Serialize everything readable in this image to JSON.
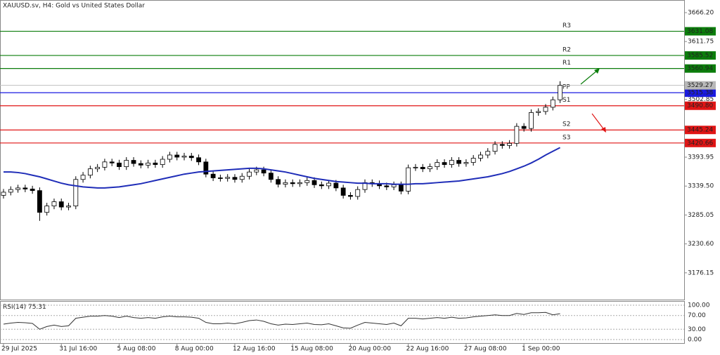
{
  "chart_data": {
    "type": "candlestick",
    "title": "XAUUSD.sv, H4:  Gold vs United States Dollar",
    "categories": [
      "29 Jul 2025",
      null,
      null,
      null,
      null,
      null,
      null,
      null,
      "31 Jul 16:00",
      null,
      null,
      null,
      null,
      null,
      null,
      null,
      "5 Aug 08:00",
      null,
      null,
      null,
      null,
      null,
      null,
      null,
      "8 Aug 00:00",
      null,
      null,
      null,
      null,
      null,
      null,
      null,
      "12 Aug 16:00",
      null,
      null,
      null,
      null,
      null,
      null,
      null,
      "15 Aug 08:00",
      null,
      null,
      null,
      null,
      null,
      null,
      null,
      "20 Aug 00:00",
      null,
      null,
      null,
      null,
      null,
      null,
      null,
      "22 Aug 16:00",
      null,
      null,
      null,
      null,
      null,
      null,
      null,
      "27 Aug 08:00",
      null,
      null,
      null,
      null,
      null,
      null,
      null,
      "1 Sep 00:00",
      null,
      null,
      null,
      null,
      null
    ],
    "open": [
      3322,
      3328,
      3333,
      3336,
      3334,
      3331,
      3290,
      3302,
      3310,
      3300,
      3302,
      3352,
      3360,
      3372,
      3375,
      3385,
      3383,
      3376,
      3388,
      3382,
      3379,
      3383,
      3380,
      3390,
      3398,
      3394,
      3396,
      3393,
      3385,
      3362,
      3355,
      3354,
      3356,
      3352,
      3358,
      3366,
      3370,
      3364,
      3352,
      3343,
      3346,
      3344,
      3346,
      3350,
      3342,
      3340,
      3345,
      3336,
      3322,
      3320,
      3333,
      3346,
      3344,
      3340,
      3338,
      3342,
      3330,
      3374,
      3375,
      3372,
      3376,
      3384,
      3380,
      3388,
      3382,
      3384,
      3392,
      3398,
      3405,
      3418,
      3416,
      3420,
      3452,
      3448,
      3478,
      3480,
      3488,
      3502
    ],
    "high": [
      3334,
      3339,
      3342,
      3342,
      3340,
      3337,
      3308,
      3316,
      3316,
      3308,
      3358,
      3366,
      3378,
      3381,
      3391,
      3391,
      3389,
      3394,
      3394,
      3388,
      3389,
      3389,
      3396,
      3404,
      3404,
      3402,
      3402,
      3399,
      3391,
      3368,
      3361,
      3362,
      3362,
      3364,
      3372,
      3376,
      3376,
      3370,
      3358,
      3352,
      3352,
      3352,
      3356,
      3356,
      3348,
      3351,
      3351,
      3342,
      3328,
      3339,
      3352,
      3352,
      3350,
      3346,
      3348,
      3348,
      3380,
      3381,
      3381,
      3382,
      3390,
      3390,
      3394,
      3394,
      3390,
      3398,
      3404,
      3411,
      3424,
      3424,
      3426,
      3458,
      3458,
      3484,
      3486,
      3494,
      3508,
      3537
    ],
    "low": [
      3316,
      3322,
      3327,
      3328,
      3325,
      3274,
      3284,
      3296,
      3294,
      3294,
      3296,
      3346,
      3354,
      3366,
      3369,
      3377,
      3370,
      3370,
      3376,
      3373,
      3373,
      3374,
      3374,
      3384,
      3388,
      3388,
      3387,
      3379,
      3356,
      3349,
      3348,
      3348,
      3346,
      3346,
      3352,
      3360,
      3358,
      3346,
      3337,
      3337,
      3338,
      3338,
      3340,
      3336,
      3334,
      3334,
      3330,
      3316,
      3314,
      3314,
      3327,
      3338,
      3334,
      3332,
      3332,
      3324,
      3324,
      3368,
      3366,
      3366,
      3370,
      3374,
      3374,
      3376,
      3376,
      3378,
      3386,
      3392,
      3399,
      3410,
      3410,
      3414,
      3442,
      3442,
      3472,
      3474,
      3482,
      3496
    ],
    "close": [
      3328,
      3333,
      3336,
      3334,
      3331,
      3290,
      3302,
      3310,
      3300,
      3302,
      3352,
      3360,
      3372,
      3375,
      3385,
      3383,
      3376,
      3388,
      3382,
      3379,
      3383,
      3380,
      3390,
      3398,
      3394,
      3396,
      3393,
      3385,
      3362,
      3355,
      3354,
      3356,
      3352,
      3358,
      3366,
      3370,
      3364,
      3352,
      3343,
      3346,
      3344,
      3346,
      3350,
      3342,
      3340,
      3345,
      3336,
      3322,
      3320,
      3333,
      3346,
      3344,
      3340,
      3338,
      3342,
      3330,
      3374,
      3375,
      3372,
      3376,
      3384,
      3380,
      3388,
      3382,
      3384,
      3392,
      3398,
      3405,
      3418,
      3416,
      3420,
      3452,
      3448,
      3478,
      3480,
      3488,
      3502,
      3529.27
    ],
    "ylim": [
      3124.4,
      3690.0
    ],
    "yticks": [
      {
        "value": 3666.2,
        "label": "3666.20"
      },
      {
        "value": 3611.75,
        "label": "3611.75"
      },
      {
        "value": 3502.85,
        "label": "3502.85"
      },
      {
        "value": 3393.95,
        "label": "3393.95"
      },
      {
        "value": 3339.5,
        "label": "3339.50"
      },
      {
        "value": 3285.05,
        "label": "3285.05"
      },
      {
        "value": 3230.6,
        "label": "3230.60"
      },
      {
        "value": 3176.15,
        "label": "3176.15"
      }
    ],
    "ma": {
      "color": "#1f2db8",
      "values": [
        3366,
        3366,
        3365,
        3363,
        3360,
        3357,
        3353,
        3349,
        3345,
        3342,
        3340,
        3338,
        3337,
        3336,
        3336,
        3337,
        3338,
        3340,
        3342,
        3344,
        3347,
        3350,
        3353,
        3356,
        3359,
        3362,
        3364,
        3366,
        3367,
        3368,
        3369,
        3370,
        3371,
        3372,
        3373,
        3373,
        3372,
        3370,
        3368,
        3366,
        3363,
        3360,
        3357,
        3354,
        3352,
        3350,
        3348,
        3347,
        3346,
        3345,
        3345,
        3344,
        3344,
        3344,
        3343,
        3343,
        3343,
        3344,
        3344,
        3345,
        3346,
        3347,
        3348,
        3349,
        3351,
        3353,
        3355,
        3357,
        3360,
        3363,
        3367,
        3372,
        3377,
        3383,
        3390,
        3398,
        3405,
        3412
      ]
    },
    "levels": [
      {
        "name": "R3",
        "value": 3631.08,
        "color": "#0b7d0b"
      },
      {
        "name": "R2",
        "value": 3585.52,
        "color": "#0b7d0b"
      },
      {
        "name": "R1",
        "value": 3560.94,
        "color": "#0b7d0b"
      },
      {
        "name": "PP",
        "value": 3515.38,
        "color": "#1a1ae0"
      },
      {
        "name": "S1",
        "value": 3490.8,
        "value_label": "3490.80",
        "color": "#e01515"
      },
      {
        "name": "S2",
        "value": 3445.24,
        "color": "#e01515"
      },
      {
        "name": "S3",
        "value": 3420.66,
        "color": "#e01515"
      }
    ],
    "rsi": {
      "name": "RSI(14)",
      "color": "#333333",
      "values": [
        45,
        48,
        50,
        49,
        47,
        30,
        38,
        42,
        38,
        40,
        62,
        65,
        68,
        68,
        70,
        68,
        64,
        68,
        64,
        62,
        64,
        62,
        66,
        68,
        66,
        66,
        65,
        62,
        50,
        46,
        46,
        48,
        46,
        50,
        55,
        57,
        53,
        46,
        42,
        45,
        44,
        46,
        48,
        44,
        43,
        46,
        40,
        34,
        33,
        42,
        50,
        48,
        46,
        44,
        48,
        40,
        62,
        62,
        60,
        62,
        64,
        62,
        65,
        62,
        63,
        66,
        68,
        70,
        72,
        70,
        70,
        76,
        73,
        78,
        78,
        79,
        72,
        75.31
      ],
      "ylim": [
        0,
        100
      ],
      "yticks": [
        {
          "value": 100,
          "label": "100.00"
        },
        {
          "value": 70,
          "label": "70.00"
        },
        {
          "value": 30,
          "label": "30.00"
        },
        {
          "value": 0,
          "label": "0.00"
        }
      ]
    }
  }
}
